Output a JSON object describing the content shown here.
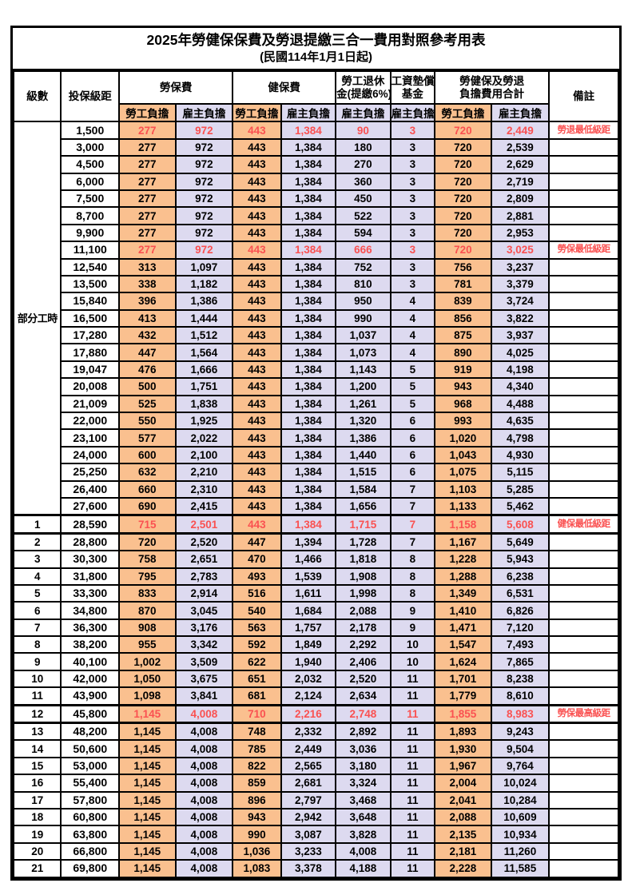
{
  "title": "2025年勞健保保費及勞退提繳三合一費用對照參考用表",
  "subtitle": "(民國114年1月1日起)",
  "header": {
    "level": "級數",
    "salary": "投保級距",
    "labor_ins": "勞保費",
    "health_ins": "健保費",
    "pension_line1": "勞工退休",
    "pension_line2": "金(提繳6%)",
    "wage_fund_line1": "工資墊償",
    "wage_fund_line2": "基金",
    "total_line1": "勞健保及勞退",
    "total_line2": "負擔費用合計",
    "note": "備註",
    "employee": "勞工負擔",
    "employer": "雇主負擔"
  },
  "part_time_label": "部分工時",
  "part_time_span": 23,
  "colors": {
    "employee_bg": "#FAC08F",
    "employer_bg": "#DDDAF0",
    "highlight_red": "#FA5151",
    "border": "#000000"
  },
  "rows": [
    {
      "lv": null,
      "salary": "1,500",
      "v": [
        "277",
        "972",
        "443",
        "1,384",
        "90",
        "3",
        "720",
        "2,449"
      ],
      "note": "勞退最低級距",
      "red": true
    },
    {
      "lv": null,
      "salary": "3,000",
      "v": [
        "277",
        "972",
        "443",
        "1,384",
        "180",
        "3",
        "720",
        "2,539"
      ],
      "note": ""
    },
    {
      "lv": null,
      "salary": "4,500",
      "v": [
        "277",
        "972",
        "443",
        "1,384",
        "270",
        "3",
        "720",
        "2,629"
      ],
      "note": ""
    },
    {
      "lv": null,
      "salary": "6,000",
      "v": [
        "277",
        "972",
        "443",
        "1,384",
        "360",
        "3",
        "720",
        "2,719"
      ],
      "note": ""
    },
    {
      "lv": null,
      "salary": "7,500",
      "v": [
        "277",
        "972",
        "443",
        "1,384",
        "450",
        "3",
        "720",
        "2,809"
      ],
      "note": ""
    },
    {
      "lv": null,
      "salary": "8,700",
      "v": [
        "277",
        "972",
        "443",
        "1,384",
        "522",
        "3",
        "720",
        "2,881"
      ],
      "note": ""
    },
    {
      "lv": null,
      "salary": "9,900",
      "v": [
        "277",
        "972",
        "443",
        "1,384",
        "594",
        "3",
        "720",
        "2,953"
      ],
      "note": ""
    },
    {
      "lv": null,
      "salary": "11,100",
      "v": [
        "277",
        "972",
        "443",
        "1,384",
        "666",
        "3",
        "720",
        "3,025"
      ],
      "note": "勞保最低級距",
      "red": true
    },
    {
      "lv": null,
      "salary": "12,540",
      "v": [
        "313",
        "1,097",
        "443",
        "1,384",
        "752",
        "3",
        "756",
        "3,237"
      ],
      "note": ""
    },
    {
      "lv": null,
      "salary": "13,500",
      "v": [
        "338",
        "1,182",
        "443",
        "1,384",
        "810",
        "3",
        "781",
        "3,379"
      ],
      "note": ""
    },
    {
      "lv": null,
      "salary": "15,840",
      "v": [
        "396",
        "1,386",
        "443",
        "1,384",
        "950",
        "4",
        "839",
        "3,724"
      ],
      "note": ""
    },
    {
      "lv": null,
      "salary": "16,500",
      "v": [
        "413",
        "1,444",
        "443",
        "1,384",
        "990",
        "4",
        "856",
        "3,822"
      ],
      "note": ""
    },
    {
      "lv": null,
      "salary": "17,280",
      "v": [
        "432",
        "1,512",
        "443",
        "1,384",
        "1,037",
        "4",
        "875",
        "3,937"
      ],
      "note": ""
    },
    {
      "lv": null,
      "salary": "17,880",
      "v": [
        "447",
        "1,564",
        "443",
        "1,384",
        "1,073",
        "4",
        "890",
        "4,025"
      ],
      "note": ""
    },
    {
      "lv": null,
      "salary": "19,047",
      "v": [
        "476",
        "1,666",
        "443",
        "1,384",
        "1,143",
        "5",
        "919",
        "4,198"
      ],
      "note": ""
    },
    {
      "lv": null,
      "salary": "20,008",
      "v": [
        "500",
        "1,751",
        "443",
        "1,384",
        "1,200",
        "5",
        "943",
        "4,340"
      ],
      "note": ""
    },
    {
      "lv": null,
      "salary": "21,009",
      "v": [
        "525",
        "1,838",
        "443",
        "1,384",
        "1,261",
        "5",
        "968",
        "4,488"
      ],
      "note": ""
    },
    {
      "lv": null,
      "salary": "22,000",
      "v": [
        "550",
        "1,925",
        "443",
        "1,384",
        "1,320",
        "6",
        "993",
        "4,635"
      ],
      "note": ""
    },
    {
      "lv": null,
      "salary": "23,100",
      "v": [
        "577",
        "2,022",
        "443",
        "1,384",
        "1,386",
        "6",
        "1,020",
        "4,798"
      ],
      "note": ""
    },
    {
      "lv": null,
      "salary": "24,000",
      "v": [
        "600",
        "2,100",
        "443",
        "1,384",
        "1,440",
        "6",
        "1,043",
        "4,930"
      ],
      "note": ""
    },
    {
      "lv": null,
      "salary": "25,250",
      "v": [
        "632",
        "2,210",
        "443",
        "1,384",
        "1,515",
        "6",
        "1,075",
        "5,115"
      ],
      "note": ""
    },
    {
      "lv": null,
      "salary": "26,400",
      "v": [
        "660",
        "2,310",
        "443",
        "1,384",
        "1,584",
        "7",
        "1,103",
        "5,285"
      ],
      "note": ""
    },
    {
      "lv": null,
      "salary": "27,600",
      "v": [
        "690",
        "2,415",
        "443",
        "1,384",
        "1,656",
        "7",
        "1,133",
        "5,462"
      ],
      "note": ""
    },
    {
      "lv": "1",
      "salary": "28,590",
      "v": [
        "715",
        "2,501",
        "443",
        "1,384",
        "1,715",
        "7",
        "1,158",
        "5,608"
      ],
      "note": "健保最低級距",
      "red": true,
      "thick": true
    },
    {
      "lv": "2",
      "salary": "28,800",
      "v": [
        "720",
        "2,520",
        "447",
        "1,394",
        "1,728",
        "7",
        "1,167",
        "5,649"
      ],
      "note": "",
      "thick": true
    },
    {
      "lv": "3",
      "salary": "30,300",
      "v": [
        "758",
        "2,651",
        "470",
        "1,466",
        "1,818",
        "8",
        "1,228",
        "5,943"
      ],
      "note": ""
    },
    {
      "lv": "4",
      "salary": "31,800",
      "v": [
        "795",
        "2,783",
        "493",
        "1,539",
        "1,908",
        "8",
        "1,288",
        "6,238"
      ],
      "note": ""
    },
    {
      "lv": "5",
      "salary": "33,300",
      "v": [
        "833",
        "2,914",
        "516",
        "1,611",
        "1,998",
        "8",
        "1,349",
        "6,531"
      ],
      "note": ""
    },
    {
      "lv": "6",
      "salary": "34,800",
      "v": [
        "870",
        "3,045",
        "540",
        "1,684",
        "2,088",
        "9",
        "1,410",
        "6,826"
      ],
      "note": ""
    },
    {
      "lv": "7",
      "salary": "36,300",
      "v": [
        "908",
        "3,176",
        "563",
        "1,757",
        "2,178",
        "9",
        "1,471",
        "7,120"
      ],
      "note": ""
    },
    {
      "lv": "8",
      "salary": "38,200",
      "v": [
        "955",
        "3,342",
        "592",
        "1,849",
        "2,292",
        "10",
        "1,547",
        "7,493"
      ],
      "note": ""
    },
    {
      "lv": "9",
      "salary": "40,100",
      "v": [
        "1,002",
        "3,509",
        "622",
        "1,940",
        "2,406",
        "10",
        "1,624",
        "7,865"
      ],
      "note": ""
    },
    {
      "lv": "10",
      "salary": "42,000",
      "v": [
        "1,050",
        "3,675",
        "651",
        "2,032",
        "2,520",
        "11",
        "1,701",
        "8,238"
      ],
      "note": ""
    },
    {
      "lv": "11",
      "salary": "43,900",
      "v": [
        "1,098",
        "3,841",
        "681",
        "2,124",
        "2,634",
        "11",
        "1,779",
        "8,610"
      ],
      "note": ""
    },
    {
      "lv": "12",
      "salary": "45,800",
      "v": [
        "1,145",
        "4,008",
        "710",
        "2,216",
        "2,748",
        "11",
        "1,855",
        "8,983"
      ],
      "note": "勞保最高級距",
      "red": true,
      "thick": true
    },
    {
      "lv": "13",
      "salary": "48,200",
      "v": [
        "1,145",
        "4,008",
        "748",
        "2,332",
        "2,892",
        "11",
        "1,893",
        "9,243"
      ],
      "note": "",
      "thick": true
    },
    {
      "lv": "14",
      "salary": "50,600",
      "v": [
        "1,145",
        "4,008",
        "785",
        "2,449",
        "3,036",
        "11",
        "1,930",
        "9,504"
      ],
      "note": ""
    },
    {
      "lv": "15",
      "salary": "53,000",
      "v": [
        "1,145",
        "4,008",
        "822",
        "2,565",
        "3,180",
        "11",
        "1,967",
        "9,764"
      ],
      "note": ""
    },
    {
      "lv": "16",
      "salary": "55,400",
      "v": [
        "1,145",
        "4,008",
        "859",
        "2,681",
        "3,324",
        "11",
        "2,004",
        "10,024"
      ],
      "note": ""
    },
    {
      "lv": "17",
      "salary": "57,800",
      "v": [
        "1,145",
        "4,008",
        "896",
        "2,797",
        "3,468",
        "11",
        "2,041",
        "10,284"
      ],
      "note": ""
    },
    {
      "lv": "18",
      "salary": "60,800",
      "v": [
        "1,145",
        "4,008",
        "943",
        "2,942",
        "3,648",
        "11",
        "2,088",
        "10,609"
      ],
      "note": ""
    },
    {
      "lv": "19",
      "salary": "63,800",
      "v": [
        "1,145",
        "4,008",
        "990",
        "3,087",
        "3,828",
        "11",
        "2,135",
        "10,934"
      ],
      "note": ""
    },
    {
      "lv": "20",
      "salary": "66,800",
      "v": [
        "1,145",
        "4,008",
        "1,036",
        "3,233",
        "4,008",
        "11",
        "2,181",
        "11,260"
      ],
      "note": ""
    },
    {
      "lv": "21",
      "salary": "69,800",
      "v": [
        "1,145",
        "4,008",
        "1,083",
        "3,378",
        "4,188",
        "11",
        "2,228",
        "11,585"
      ],
      "note": ""
    }
  ],
  "value_column_styles": [
    "emp",
    "er",
    "emp",
    "er",
    "er",
    "er",
    "emp",
    "er"
  ]
}
